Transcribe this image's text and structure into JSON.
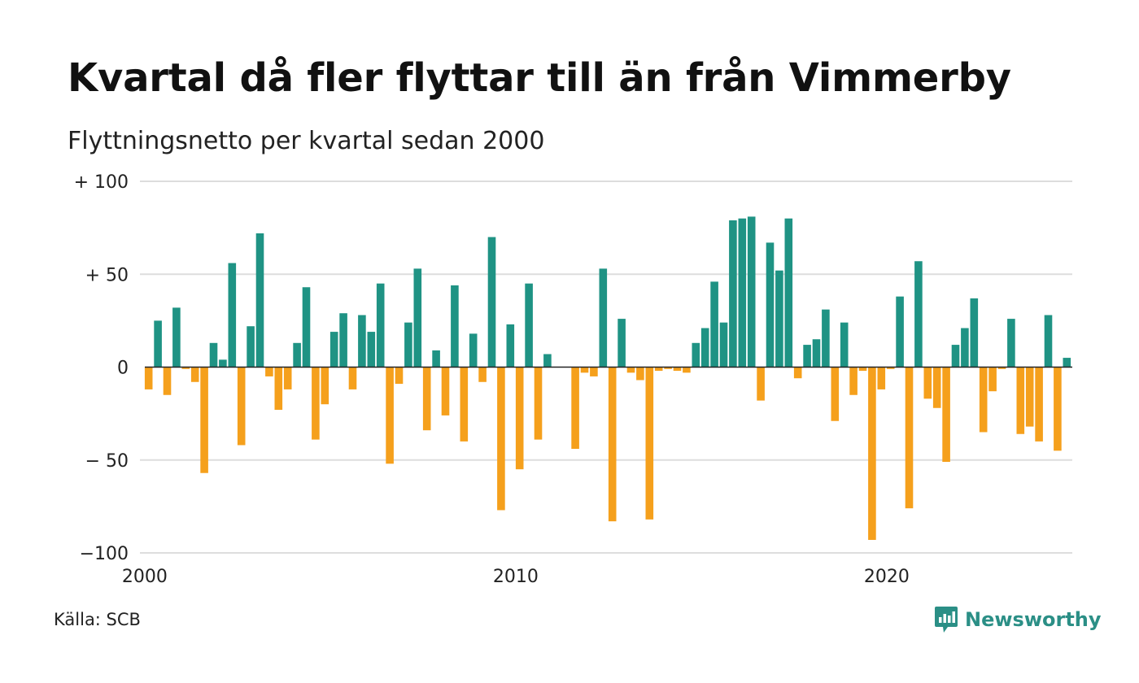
{
  "title": "Kvartal då fler flyttar till än från Vimmerby",
  "subtitle": "Flyttningsnetto per kvartal sedan 2000",
  "source": "Källa: SCB",
  "brand": {
    "name": "Newsworthy",
    "icon": "newsworthy-logo-icon",
    "color": "#2b8f86"
  },
  "colors": {
    "positive": "#1f9384",
    "negative": "#f5a01c",
    "grid": "#dddddd",
    "zero_line": "#222222"
  },
  "chart_data": {
    "type": "bar",
    "xlabel": "",
    "ylabel": "",
    "ylim": [
      -100,
      100
    ],
    "grid": true,
    "y_ticks": [
      {
        "value": 100,
        "label": "+ 100"
      },
      {
        "value": 50,
        "label": "+  50"
      },
      {
        "value": 0,
        "label": "0"
      },
      {
        "value": -50,
        "label": "− 50"
      },
      {
        "value": -100,
        "label": "−100"
      }
    ],
    "x_ticks": [
      {
        "year": 2000,
        "label": "2000"
      },
      {
        "year": 2010,
        "label": "2010"
      },
      {
        "year": 2020,
        "label": "2020"
      }
    ],
    "start_year": 2000,
    "values": [
      -12,
      25,
      -15,
      32,
      -1,
      -8,
      -57,
      13,
      4,
      56,
      -42,
      22,
      72,
      -5,
      -23,
      -12,
      13,
      43,
      -39,
      -20,
      19,
      29,
      -12,
      28,
      19,
      45,
      -52,
      -9,
      24,
      53,
      -34,
      9,
      -26,
      44,
      -40,
      18,
      -8,
      70,
      -77,
      23,
      -55,
      45,
      -39,
      7,
      0,
      0,
      -44,
      -3,
      -5,
      53,
      -83,
      26,
      -3,
      -7,
      -82,
      -2,
      -1,
      -2,
      -3,
      13,
      21,
      46,
      24,
      79,
      80,
      81,
      -18,
      67,
      52,
      80,
      -6,
      12,
      15,
      31,
      -29,
      24,
      -15,
      -2,
      -93,
      -12,
      -1,
      38,
      -76,
      57,
      -17,
      -22,
      -51,
      12,
      21,
      37,
      -35,
      -13,
      -1,
      26,
      -36,
      -32,
      -40,
      28,
      -45,
      5
    ]
  }
}
